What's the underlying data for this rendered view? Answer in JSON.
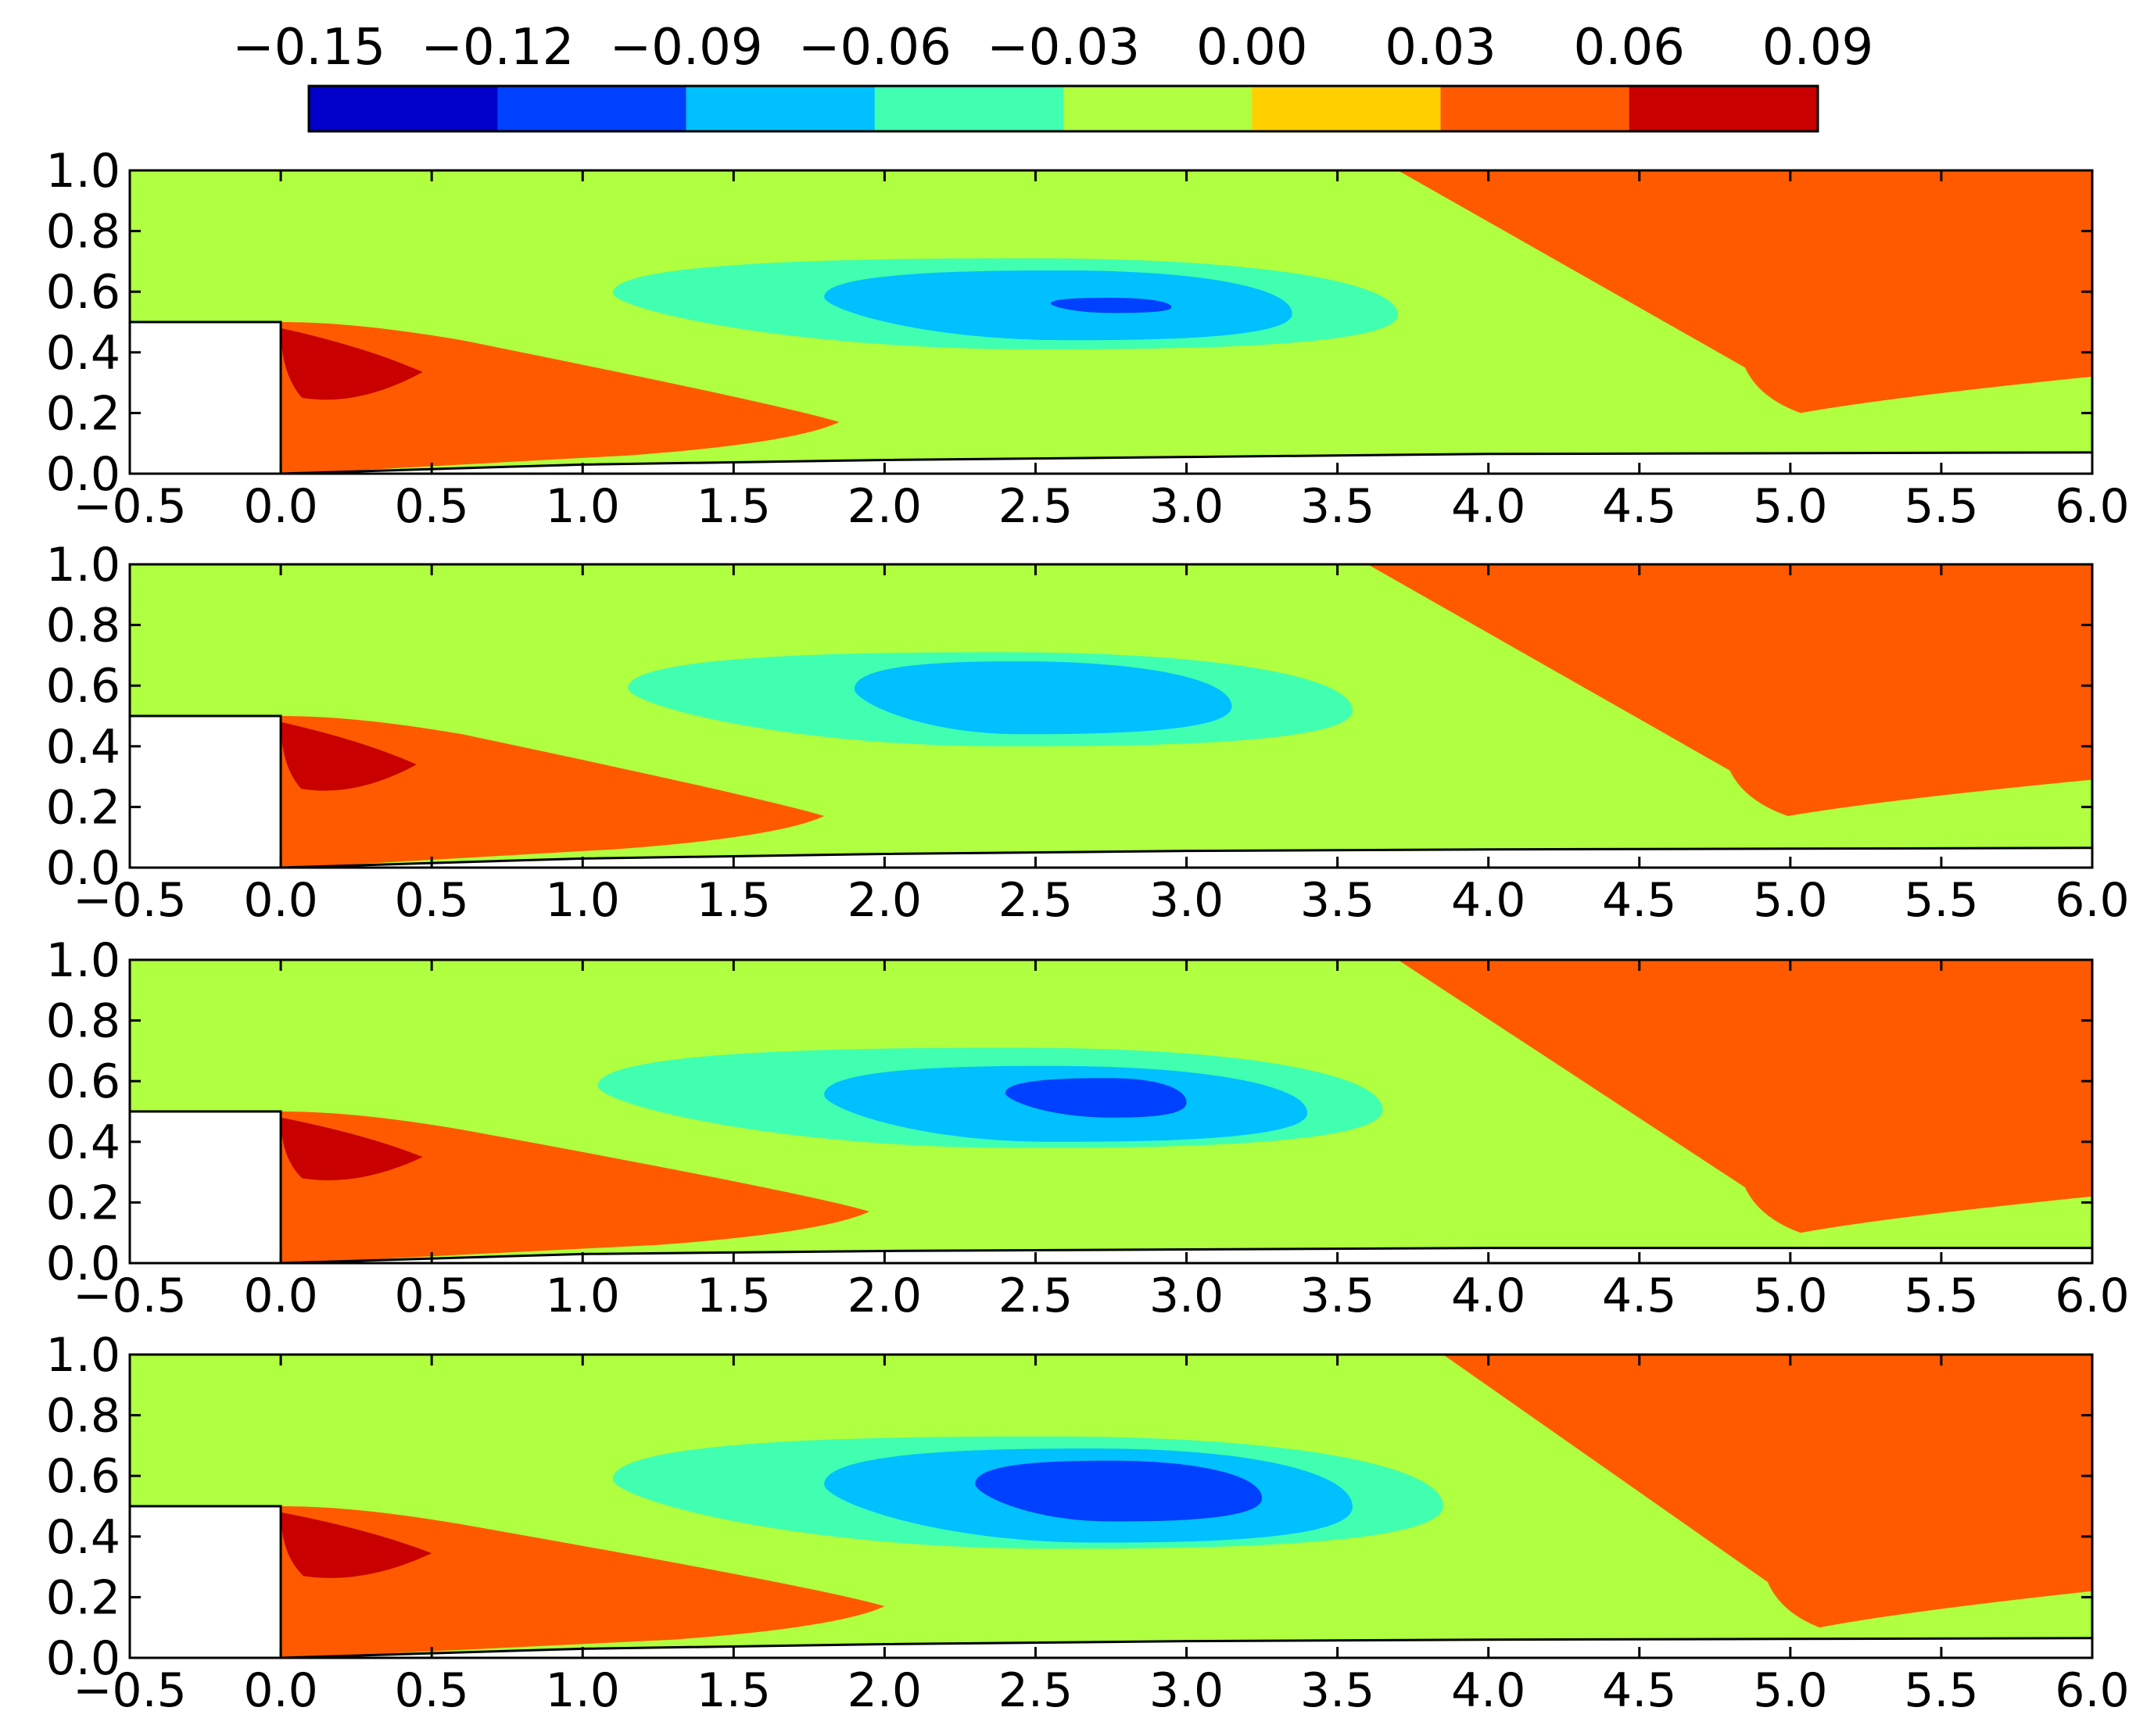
{
  "chart_data": [
    {
      "type": "contour",
      "xlim": [
        -0.5,
        6.0
      ],
      "ylim": [
        0.0,
        1.0
      ],
      "xticks": [
        "−0.5",
        "0.0",
        "0.5",
        "1.0",
        "1.5",
        "2.0",
        "2.5",
        "3.0",
        "3.5",
        "4.0",
        "4.5",
        "5.0",
        "5.5",
        "6.0"
      ],
      "yticks": [
        "0.0",
        "0.2",
        "0.4",
        "0.6",
        "0.8",
        "1.0"
      ],
      "step": {
        "x": [
          -0.5,
          0.0
        ],
        "y": [
          0.0,
          0.5
        ]
      },
      "contours": [
        {
          "level": 0.03,
          "region": "upper-right wedge",
          "x": [
            3.7,
            6.0
          ],
          "y": [
            0.2,
            1.0
          ]
        },
        {
          "level": 0.03,
          "region": "below step",
          "x": [
            0.0,
            1.85
          ],
          "y": [
            0.0,
            0.5
          ]
        },
        {
          "level": 0.06,
          "region": "step corner",
          "x": [
            0.0,
            0.47
          ],
          "y": [
            0.23,
            0.48
          ]
        },
        {
          "level": -0.03,
          "center": [
            2.4,
            0.6
          ],
          "x": [
            0.57,
            4.05
          ],
          "y": [
            0.3,
            0.86
          ]
        },
        {
          "level": -0.06,
          "center": [
            2.5,
            0.57
          ],
          "x": [
            1.1,
            3.7
          ],
          "y": [
            0.41,
            0.71
          ]
        },
        {
          "level": -0.09,
          "center": [
            2.6,
            0.55
          ],
          "x": [
            1.8,
            3.35
          ],
          "y": [
            0.44,
            0.67
          ]
        },
        {
          "level": -0.12,
          "center": [
            2.75,
            0.56
          ],
          "x": [
            2.55,
            2.95
          ],
          "y": [
            0.53,
            0.58
          ]
        }
      ],
      "boundary_curve": [
        [
          0.0,
          0.0
        ],
        [
          1.0,
          0.03
        ],
        [
          2.0,
          0.045
        ],
        [
          3.0,
          0.055
        ],
        [
          4.0,
          0.065
        ],
        [
          6.0,
          0.07
        ]
      ]
    },
    {
      "type": "contour",
      "xlim": [
        -0.5,
        6.0
      ],
      "ylim": [
        0.0,
        1.0
      ],
      "xticks": [
        "−0.5",
        "0.0",
        "0.5",
        "1.0",
        "1.5",
        "2.0",
        "2.5",
        "3.0",
        "3.5",
        "4.0",
        "4.5",
        "5.0",
        "5.5",
        "6.0"
      ],
      "yticks": [
        "0.0",
        "0.2",
        "0.4",
        "0.6",
        "0.8",
        "1.0"
      ],
      "step": {
        "x": [
          -0.5,
          0.0
        ],
        "y": [
          0.0,
          0.5
        ]
      },
      "contours": [
        {
          "level": 0.03,
          "region": "upper-right wedge",
          "x": [
            3.6,
            6.0
          ],
          "y": [
            0.17,
            1.0
          ]
        },
        {
          "level": 0.03,
          "region": "below step",
          "x": [
            0.0,
            1.8
          ],
          "y": [
            0.0,
            0.5
          ]
        },
        {
          "level": 0.06,
          "region": "step corner",
          "x": [
            0.0,
            0.45
          ],
          "y": [
            0.24,
            0.48
          ]
        },
        {
          "level": -0.03,
          "center": [
            2.3,
            0.56
          ],
          "x": [
            0.57,
            3.9
          ],
          "y": [
            0.3,
            0.85
          ]
        },
        {
          "level": -0.06,
          "center": [
            2.4,
            0.55
          ],
          "x": [
            1.15,
            3.55
          ],
          "y": [
            0.4,
            0.71
          ]
        },
        {
          "level": -0.09,
          "center": [
            2.45,
            0.55
          ],
          "x": [
            1.9,
            3.15
          ],
          "y": [
            0.44,
            0.68
          ]
        }
      ],
      "boundary_curve": [
        [
          0.0,
          0.0
        ],
        [
          1.0,
          0.03
        ],
        [
          2.0,
          0.045
        ],
        [
          3.0,
          0.055
        ],
        [
          4.0,
          0.06
        ],
        [
          6.0,
          0.065
        ]
      ]
    },
    {
      "type": "contour",
      "xlim": [
        -0.5,
        6.0
      ],
      "ylim": [
        0.0,
        1.0
      ],
      "xticks": [
        "−0.5",
        "0.0",
        "0.5",
        "1.0",
        "1.5",
        "2.0",
        "2.5",
        "3.0",
        "3.5",
        "4.0",
        "4.5",
        "5.0",
        "5.5",
        "6.0"
      ],
      "yticks": [
        "0.0",
        "0.2",
        "0.4",
        "0.6",
        "0.8",
        "1.0"
      ],
      "step": {
        "x": [
          -0.5,
          0.0
        ],
        "y": [
          0.0,
          0.5
        ]
      },
      "contours": [
        {
          "level": 0.03,
          "region": "upper-right wedge",
          "x": [
            3.7,
            6.0
          ],
          "y": [
            0.1,
            1.0
          ]
        },
        {
          "level": 0.03,
          "region": "below step",
          "x": [
            0.0,
            1.95
          ],
          "y": [
            0.0,
            0.5
          ]
        },
        {
          "level": 0.06,
          "region": "step corner",
          "x": [
            0.0,
            0.47
          ],
          "y": [
            0.26,
            0.48
          ]
        },
        {
          "level": -0.03,
          "center": [
            2.35,
            0.57
          ],
          "x": [
            0.55,
            4.05
          ],
          "y": [
            0.28,
            0.87
          ]
        },
        {
          "level": -0.06,
          "center": [
            2.45,
            0.55
          ],
          "x": [
            1.05,
            3.65
          ],
          "y": [
            0.38,
            0.71
          ]
        },
        {
          "level": -0.09,
          "center": [
            2.55,
            0.54
          ],
          "x": [
            1.8,
            3.4
          ],
          "y": [
            0.4,
            0.65
          ]
        },
        {
          "level": -0.12,
          "center": [
            2.75,
            0.55
          ],
          "x": [
            2.4,
            3.0
          ],
          "y": [
            0.48,
            0.61
          ]
        }
      ],
      "boundary_curve": [
        [
          0.0,
          0.0
        ],
        [
          1.0,
          0.03
        ],
        [
          2.0,
          0.04
        ],
        [
          3.0,
          0.045
        ],
        [
          4.0,
          0.05
        ],
        [
          6.0,
          0.05
        ]
      ]
    },
    {
      "type": "contour",
      "xlim": [
        -0.5,
        6.0
      ],
      "ylim": [
        0.0,
        1.0
      ],
      "xticks": [
        "−0.5",
        "0.0",
        "0.5",
        "1.0",
        "1.5",
        "2.0",
        "2.5",
        "3.0",
        "3.5",
        "4.0",
        "4.5",
        "5.0",
        "5.5",
        "6.0"
      ],
      "yticks": [
        "0.0",
        "0.2",
        "0.4",
        "0.6",
        "0.8",
        "1.0"
      ],
      "step": {
        "x": [
          -0.5,
          0.0
        ],
        "y": [
          0.0,
          0.5
        ]
      },
      "contours": [
        {
          "level": 0.03,
          "region": "upper-right wedge",
          "x": [
            3.85,
            6.0
          ],
          "y": [
            0.1,
            1.0
          ]
        },
        {
          "level": 0.03,
          "region": "below step",
          "x": [
            0.0,
            2.0
          ],
          "y": [
            0.0,
            0.5
          ]
        },
        {
          "level": 0.06,
          "region": "step corner",
          "x": [
            0.0,
            0.5
          ],
          "y": [
            0.25,
            0.48
          ]
        },
        {
          "level": 0.09,
          "region": "step corner core",
          "x": [
            0.05,
            0.12
          ],
          "y": [
            0.39,
            0.44
          ]
        },
        {
          "level": -0.03,
          "center": [
            2.4,
            0.58
          ],
          "x": [
            0.55,
            4.15
          ],
          "y": [
            0.28,
            0.88
          ]
        },
        {
          "level": -0.06,
          "center": [
            2.55,
            0.56
          ],
          "x": [
            1.1,
            3.85
          ],
          "y": [
            0.36,
            0.73
          ]
        },
        {
          "level": -0.09,
          "center": [
            2.7,
            0.55
          ],
          "x": [
            1.8,
            3.55
          ],
          "y": [
            0.38,
            0.69
          ]
        },
        {
          "level": -0.12,
          "center": [
            2.75,
            0.54
          ],
          "x": [
            2.3,
            3.25
          ],
          "y": [
            0.45,
            0.65
          ]
        }
      ],
      "boundary_curve": [
        [
          0.0,
          0.0
        ],
        [
          1.0,
          0.03
        ],
        [
          2.0,
          0.045
        ],
        [
          3.0,
          0.055
        ],
        [
          4.0,
          0.06
        ],
        [
          6.0,
          0.065
        ]
      ]
    }
  ],
  "colorbar": {
    "orientation": "horizontal",
    "placement": "top",
    "ticks": [
      "−0.15",
      "−0.12",
      "−0.09",
      "−0.06",
      "−0.03",
      "0.00",
      "0.03",
      "0.06",
      "0.09"
    ],
    "colors": [
      "#0000c8",
      "#0040ff",
      "#00c0ff",
      "#40ffb0",
      "#b0ff40",
      "#ffd000",
      "#ff5a00",
      "#c80000"
    ]
  },
  "colors": {
    "background_level": "#b0ff40",
    "step": "#ffffff"
  }
}
